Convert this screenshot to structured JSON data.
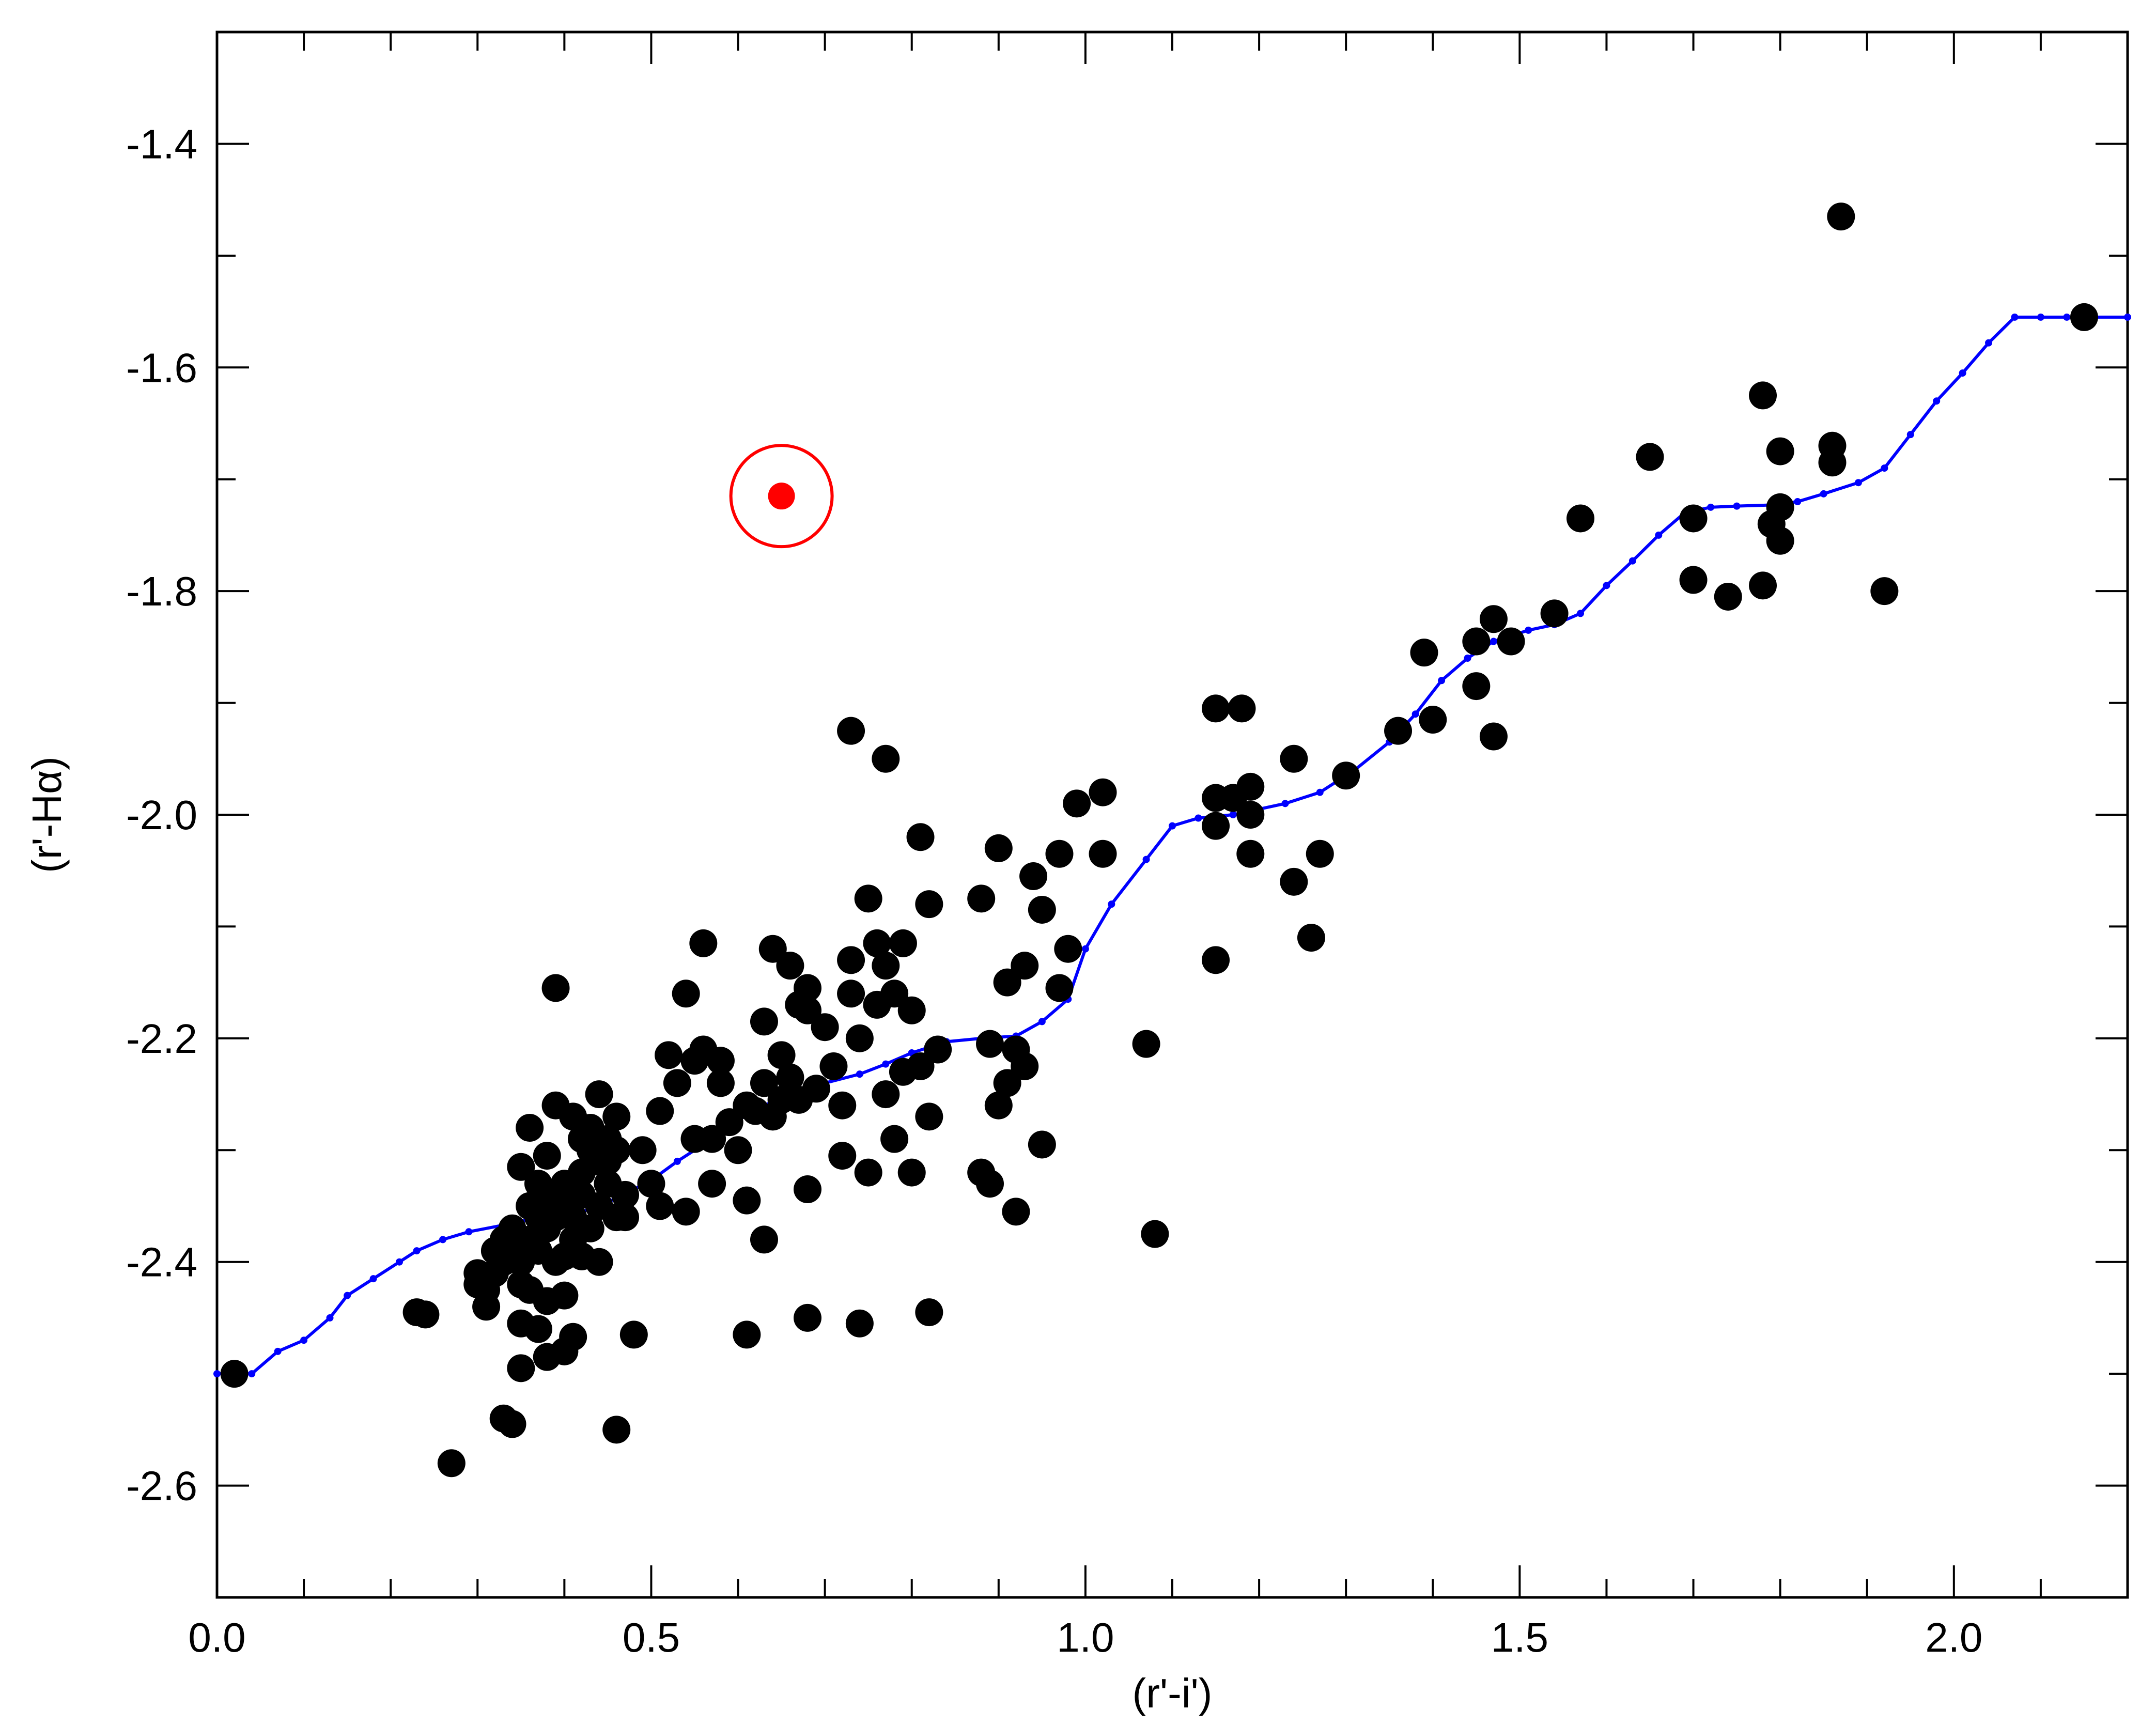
{
  "chart_data": {
    "type": "scatter",
    "xlabel": "(r'-i')",
    "ylabel": "(r'-Hα)",
    "xlim": [
      0.0,
      2.2
    ],
    "ylim": [
      -2.7,
      -1.3
    ],
    "y_inverted": false,
    "grid": false,
    "xticks": [
      0.0,
      0.5,
      1.0,
      1.5,
      2.0
    ],
    "xtick_labels": [
      "0.0",
      "0.5",
      "1.0",
      "1.5",
      "2.0"
    ],
    "yticks": [
      -1.4,
      -1.6,
      -1.8,
      -2.0,
      -2.2,
      -2.4,
      -2.6
    ],
    "ytick_labels": [
      "-1.4",
      "-1.6",
      "-1.8",
      "-2.0",
      "-2.2",
      "-2.4",
      "-2.6"
    ],
    "colors": {
      "points": "#000000",
      "line": "#0000ff",
      "highlight": "#ff0000"
    },
    "series": [
      {
        "kind": "scatter",
        "points": [
          [
            0.02,
            -2.5
          ],
          [
            0.23,
            -2.445
          ],
          [
            0.24,
            -2.447
          ],
          [
            0.27,
            -2.58
          ],
          [
            0.33,
            -2.54
          ],
          [
            0.34,
            -2.545
          ],
          [
            0.35,
            -2.495
          ],
          [
            0.35,
            -2.455
          ],
          [
            0.37,
            -2.46
          ],
          [
            0.38,
            -2.485
          ],
          [
            0.4,
            -2.48
          ],
          [
            0.41,
            -2.467
          ],
          [
            0.46,
            -2.55
          ],
          [
            0.48,
            -2.465
          ],
          [
            0.38,
            -2.435
          ],
          [
            0.4,
            -2.43
          ],
          [
            0.3,
            -2.41
          ],
          [
            0.3,
            -2.42
          ],
          [
            0.31,
            -2.425
          ],
          [
            0.31,
            -2.44
          ],
          [
            0.32,
            -2.39
          ],
          [
            0.32,
            -2.41
          ],
          [
            0.33,
            -2.38
          ],
          [
            0.33,
            -2.4
          ],
          [
            0.34,
            -2.37
          ],
          [
            0.34,
            -2.39
          ],
          [
            0.35,
            -2.42
          ],
          [
            0.35,
            -2.4
          ],
          [
            0.36,
            -2.38
          ],
          [
            0.36,
            -2.35
          ],
          [
            0.37,
            -2.36
          ],
          [
            0.37,
            -2.39
          ],
          [
            0.38,
            -2.37
          ],
          [
            0.38,
            -2.34
          ],
          [
            0.39,
            -2.36
          ],
          [
            0.39,
            -2.4
          ],
          [
            0.4,
            -2.35
          ],
          [
            0.4,
            -2.33
          ],
          [
            0.41,
            -2.38
          ],
          [
            0.41,
            -2.36
          ],
          [
            0.42,
            -2.32
          ],
          [
            0.42,
            -2.34
          ],
          [
            0.43,
            -2.37
          ],
          [
            0.43,
            -2.3
          ],
          [
            0.44,
            -2.31
          ],
          [
            0.44,
            -2.35
          ],
          [
            0.45,
            -2.33
          ],
          [
            0.45,
            -2.29
          ],
          [
            0.46,
            -2.36
          ],
          [
            0.46,
            -2.3
          ],
          [
            0.47,
            -2.34
          ],
          [
            0.47,
            -2.36
          ],
          [
            0.35,
            -2.315
          ],
          [
            0.36,
            -2.28
          ],
          [
            0.37,
            -2.33
          ],
          [
            0.38,
            -2.305
          ],
          [
            0.39,
            -2.26
          ],
          [
            0.41,
            -2.27
          ],
          [
            0.42,
            -2.29
          ],
          [
            0.43,
            -2.28
          ],
          [
            0.44,
            -2.25
          ],
          [
            0.45,
            -2.31
          ],
          [
            0.46,
            -2.27
          ],
          [
            0.42,
            -2.395
          ],
          [
            0.44,
            -2.4
          ],
          [
            0.36,
            -2.425
          ],
          [
            0.4,
            -2.395
          ],
          [
            0.39,
            -2.155
          ],
          [
            0.49,
            -2.3
          ],
          [
            0.5,
            -2.33
          ],
          [
            0.51,
            -2.35
          ],
          [
            0.51,
            -2.265
          ],
          [
            0.52,
            -2.215
          ],
          [
            0.53,
            -2.24
          ],
          [
            0.54,
            -2.355
          ],
          [
            0.54,
            -2.16
          ],
          [
            0.55,
            -2.22
          ],
          [
            0.55,
            -2.29
          ],
          [
            0.56,
            -2.115
          ],
          [
            0.56,
            -2.21
          ],
          [
            0.57,
            -2.33
          ],
          [
            0.57,
            -2.29
          ],
          [
            0.58,
            -2.22
          ],
          [
            0.58,
            -2.24
          ],
          [
            0.59,
            -2.275
          ],
          [
            0.6,
            -2.3
          ],
          [
            0.61,
            -2.345
          ],
          [
            0.61,
            -2.26
          ],
          [
            0.62,
            -2.265
          ],
          [
            0.63,
            -2.24
          ],
          [
            0.63,
            -2.185
          ],
          [
            0.64,
            -2.12
          ],
          [
            0.64,
            -2.27
          ],
          [
            0.65,
            -2.215
          ],
          [
            0.65,
            -2.255
          ],
          [
            0.66,
            -2.135
          ],
          [
            0.66,
            -2.235
          ],
          [
            0.67,
            -2.17
          ],
          [
            0.67,
            -2.255
          ],
          [
            0.68,
            -2.155
          ],
          [
            0.68,
            -2.175
          ],
          [
            0.69,
            -2.245
          ],
          [
            0.7,
            -2.19
          ],
          [
            0.71,
            -2.225
          ],
          [
            0.72,
            -2.26
          ],
          [
            0.72,
            -2.305
          ],
          [
            0.73,
            -2.16
          ],
          [
            0.73,
            -2.13
          ],
          [
            0.74,
            -2.2
          ],
          [
            0.75,
            -2.32
          ],
          [
            0.75,
            -2.075
          ],
          [
            0.76,
            -2.115
          ],
          [
            0.76,
            -2.17
          ],
          [
            0.77,
            -2.25
          ],
          [
            0.77,
            -2.135
          ],
          [
            0.78,
            -2.16
          ],
          [
            0.78,
            -2.29
          ],
          [
            0.79,
            -2.115
          ],
          [
            0.79,
            -2.23
          ],
          [
            0.8,
            -2.175
          ],
          [
            0.8,
            -2.32
          ],
          [
            0.81,
            -2.225
          ],
          [
            0.82,
            -2.27
          ],
          [
            0.82,
            -2.08
          ],
          [
            0.81,
            -2.02
          ],
          [
            0.83,
            -2.21
          ],
          [
            0.63,
            -2.38
          ],
          [
            0.68,
            -2.335
          ],
          [
            0.73,
            -1.925
          ],
          [
            0.77,
            -1.95
          ],
          [
            0.88,
            -2.075
          ],
          [
            0.88,
            -2.32
          ],
          [
            0.89,
            -2.205
          ],
          [
            0.89,
            -2.33
          ],
          [
            0.9,
            -2.26
          ],
          [
            0.9,
            -2.03
          ],
          [
            0.91,
            -2.24
          ],
          [
            0.91,
            -2.15
          ],
          [
            0.92,
            -2.21
          ],
          [
            0.92,
            -2.355
          ],
          [
            0.93,
            -2.135
          ],
          [
            0.93,
            -2.225
          ],
          [
            0.94,
            -2.055
          ],
          [
            0.95,
            -2.085
          ],
          [
            0.95,
            -2.295
          ],
          [
            0.97,
            -2.035
          ],
          [
            0.97,
            -2.155
          ],
          [
            0.98,
            -2.12
          ],
          [
            0.99,
            -1.99
          ],
          [
            1.02,
            -1.98
          ],
          [
            1.02,
            -2.035
          ],
          [
            0.61,
            -2.465
          ],
          [
            0.68,
            -2.45
          ],
          [
            0.74,
            -2.455
          ],
          [
            0.82,
            -2.445
          ],
          [
            1.07,
            -2.205
          ],
          [
            1.08,
            -2.375
          ],
          [
            1.15,
            -1.905
          ],
          [
            1.15,
            -1.985
          ],
          [
            1.15,
            -2.01
          ],
          [
            1.15,
            -2.13
          ],
          [
            1.17,
            -1.985
          ],
          [
            1.18,
            -1.905
          ],
          [
            1.19,
            -2.0
          ],
          [
            1.19,
            -2.035
          ],
          [
            1.19,
            -1.975
          ],
          [
            1.24,
            -1.95
          ],
          [
            1.24,
            -2.06
          ],
          [
            1.26,
            -2.11
          ],
          [
            1.27,
            -2.035
          ],
          [
            1.3,
            -1.965
          ],
          [
            1.36,
            -1.925
          ],
          [
            1.39,
            -1.855
          ],
          [
            1.4,
            -1.915
          ],
          [
            1.45,
            -1.845
          ],
          [
            1.45,
            -1.885
          ],
          [
            1.47,
            -1.825
          ],
          [
            1.47,
            -1.93
          ],
          [
            1.49,
            -1.845
          ],
          [
            1.54,
            -1.82
          ],
          [
            1.57,
            -1.735
          ],
          [
            1.65,
            -1.68
          ],
          [
            1.7,
            -1.735
          ],
          [
            1.7,
            -1.79
          ],
          [
            1.74,
            -1.805
          ],
          [
            1.78,
            -1.625
          ],
          [
            1.78,
            -1.795
          ],
          [
            1.79,
            -1.74
          ],
          [
            1.8,
            -1.675
          ],
          [
            1.8,
            -1.725
          ],
          [
            1.8,
            -1.755
          ],
          [
            1.86,
            -1.67
          ],
          [
            1.86,
            -1.685
          ],
          [
            1.87,
            -1.465
          ],
          [
            1.92,
            -1.8
          ],
          [
            2.15,
            -1.555
          ]
        ]
      },
      {
        "kind": "line",
        "points": [
          [
            0.0,
            -2.5
          ],
          [
            0.04,
            -2.5
          ],
          [
            0.07,
            -2.48
          ],
          [
            0.1,
            -2.47
          ],
          [
            0.13,
            -2.45
          ],
          [
            0.15,
            -2.43
          ],
          [
            0.18,
            -2.415
          ],
          [
            0.21,
            -2.4
          ],
          [
            0.23,
            -2.39
          ],
          [
            0.26,
            -2.38
          ],
          [
            0.29,
            -2.373
          ],
          [
            0.33,
            -2.367
          ],
          [
            0.36,
            -2.362
          ],
          [
            0.4,
            -2.358
          ],
          [
            0.43,
            -2.353
          ],
          [
            0.46,
            -2.343
          ],
          [
            0.5,
            -2.327
          ],
          [
            0.53,
            -2.31
          ],
          [
            0.57,
            -2.29
          ],
          [
            0.6,
            -2.273
          ],
          [
            0.63,
            -2.26
          ],
          [
            0.66,
            -2.25
          ],
          [
            0.7,
            -2.24
          ],
          [
            0.74,
            -2.232
          ],
          [
            0.77,
            -2.223
          ],
          [
            0.8,
            -2.213
          ],
          [
            0.84,
            -2.203
          ],
          [
            0.88,
            -2.2
          ],
          [
            0.92,
            -2.198
          ],
          [
            0.95,
            -2.185
          ],
          [
            0.98,
            -2.165
          ],
          [
            1.0,
            -2.12
          ],
          [
            1.03,
            -2.08
          ],
          [
            1.07,
            -2.04
          ],
          [
            1.1,
            -2.01
          ],
          [
            1.13,
            -2.003
          ],
          [
            1.17,
            -2.0
          ],
          [
            1.2,
            -1.995
          ],
          [
            1.23,
            -1.99
          ],
          [
            1.27,
            -1.98
          ],
          [
            1.31,
            -1.96
          ],
          [
            1.35,
            -1.935
          ],
          [
            1.38,
            -1.91
          ],
          [
            1.41,
            -1.88
          ],
          [
            1.44,
            -1.86
          ],
          [
            1.47,
            -1.845
          ],
          [
            1.51,
            -1.835
          ],
          [
            1.54,
            -1.83
          ],
          [
            1.57,
            -1.82
          ],
          [
            1.6,
            -1.795
          ],
          [
            1.63,
            -1.773
          ],
          [
            1.66,
            -1.75
          ],
          [
            1.69,
            -1.73
          ],
          [
            1.72,
            -1.725
          ],
          [
            1.75,
            -1.724
          ],
          [
            1.79,
            -1.723
          ],
          [
            1.82,
            -1.72
          ],
          [
            1.85,
            -1.713
          ],
          [
            1.89,
            -1.703
          ],
          [
            1.92,
            -1.69
          ],
          [
            1.95,
            -1.66
          ],
          [
            1.98,
            -1.63
          ],
          [
            2.01,
            -1.605
          ],
          [
            2.04,
            -1.578
          ],
          [
            2.07,
            -1.555
          ],
          [
            2.1,
            -1.555
          ],
          [
            2.13,
            -1.555
          ],
          [
            2.16,
            -1.555
          ],
          [
            2.2,
            -1.555
          ]
        ]
      },
      {
        "kind": "highlight",
        "points": [
          [
            0.65,
            -1.715
          ]
        ]
      }
    ]
  }
}
